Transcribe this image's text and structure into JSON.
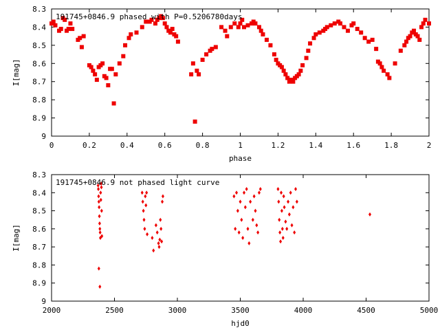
{
  "chart_data": [
    {
      "type": "scatter",
      "title": "191745+0846.9 phased with P=0.5206780days",
      "xlabel": "phase",
      "ylabel": "I[mag]",
      "xlim": [
        0,
        2
      ],
      "ylim": [
        9,
        8.3
      ],
      "x_ticks": [
        0,
        0.2,
        0.4,
        0.6,
        0.8,
        1,
        1.2,
        1.4,
        1.6,
        1.8,
        2
      ],
      "x_tick_labels": [
        "0",
        "0.2",
        "0.4",
        "0.6",
        "0.8",
        "1",
        "1.2",
        "1.4",
        "1.6",
        "1.8",
        "2"
      ],
      "y_ticks": [
        8.3,
        8.4,
        8.5,
        8.6,
        8.7,
        8.8,
        8.9,
        9
      ],
      "y_tick_labels": [
        "8.3",
        "8.4",
        "8.5",
        "8.6",
        "8.7",
        "8.8",
        "8.9",
        "9"
      ],
      "grid": false,
      "marker_color": "#ee0000",
      "series": [
        {
          "x": [
            0.0,
            0.01,
            0.02,
            0.04,
            0.05,
            0.06,
            0.07,
            0.08,
            0.09,
            0.1,
            0.11,
            0.14,
            0.15,
            0.16,
            0.17,
            0.2,
            0.21,
            0.22,
            0.23,
            0.24,
            0.25,
            0.26,
            0.27,
            0.28,
            0.29,
            0.3,
            0.31,
            0.32,
            0.33,
            0.34,
            0.36,
            0.38,
            0.39,
            0.41,
            0.42,
            0.45,
            0.48,
            0.5,
            0.52,
            0.53,
            0.55,
            0.56,
            0.57,
            0.58,
            0.59,
            0.6,
            0.61,
            0.62,
            0.63,
            0.64,
            0.65,
            0.66,
            0.67,
            0.74,
            0.75,
            0.76,
            0.77,
            0.78,
            0.8,
            0.82,
            0.84,
            0.85,
            0.87,
            0.9,
            0.92,
            0.93,
            0.95,
            0.97,
            0.99,
            1.0,
            1.01,
            1.02,
            1.04,
            1.06,
            1.07,
            1.08,
            1.1,
            1.11,
            1.12,
            1.14,
            1.16,
            1.18,
            1.19,
            1.2,
            1.21,
            1.22,
            1.23,
            1.24,
            1.25,
            1.26,
            1.27,
            1.28,
            1.29,
            1.3,
            1.31,
            1.32,
            1.33,
            1.35,
            1.36,
            1.37,
            1.39,
            1.4,
            1.42,
            1.44,
            1.45,
            1.46,
            1.48,
            1.5,
            1.52,
            1.53,
            1.55,
            1.57,
            1.59,
            1.6,
            1.62,
            1.64,
            1.66,
            1.68,
            1.7,
            1.72,
            1.73,
            1.74,
            1.75,
            1.76,
            1.78,
            1.79,
            1.82,
            1.85,
            1.87,
            1.88,
            1.89,
            1.9,
            1.91,
            1.92,
            1.93,
            1.94,
            1.95,
            1.96,
            1.97,
            1.98,
            2.0
          ],
          "y": [
            8.38,
            8.37,
            8.39,
            8.42,
            8.41,
            8.35,
            8.36,
            8.42,
            8.41,
            8.38,
            8.41,
            8.47,
            8.46,
            8.51,
            8.45,
            8.61,
            8.62,
            8.64,
            8.66,
            8.69,
            8.62,
            8.61,
            8.6,
            8.67,
            8.68,
            8.72,
            8.63,
            8.63,
            8.82,
            8.66,
            8.6,
            8.56,
            8.5,
            8.46,
            8.44,
            8.43,
            8.4,
            8.37,
            8.37,
            8.36,
            8.38,
            8.36,
            8.35,
            8.34,
            8.35,
            8.38,
            8.4,
            8.42,
            8.43,
            8.41,
            8.44,
            8.45,
            8.48,
            8.66,
            8.6,
            8.92,
            8.64,
            8.66,
            8.58,
            8.55,
            8.53,
            8.52,
            8.51,
            8.4,
            8.42,
            8.45,
            8.4,
            8.38,
            8.4,
            8.38,
            8.36,
            8.4,
            8.39,
            8.38,
            8.37,
            8.38,
            8.4,
            8.42,
            8.44,
            8.47,
            8.5,
            8.55,
            8.58,
            8.6,
            8.61,
            8.62,
            8.64,
            8.66,
            8.68,
            8.7,
            8.69,
            8.7,
            8.68,
            8.67,
            8.66,
            8.64,
            8.61,
            8.57,
            8.53,
            8.49,
            8.46,
            8.44,
            8.43,
            8.42,
            8.41,
            8.4,
            8.39,
            8.38,
            8.37,
            8.38,
            8.4,
            8.42,
            8.39,
            8.38,
            8.41,
            8.43,
            8.46,
            8.48,
            8.47,
            8.52,
            8.59,
            8.6,
            8.62,
            8.64,
            8.66,
            8.68,
            8.6,
            8.53,
            8.5,
            8.48,
            8.46,
            8.45,
            8.43,
            8.42,
            8.44,
            8.45,
            8.47,
            8.4,
            8.38,
            8.36,
            8.38
          ]
        }
      ]
    },
    {
      "type": "scatter",
      "title": "191745+0846.9 not phased light curve",
      "xlabel": "hjd0",
      "ylabel": "I[mag]",
      "xlim": [
        2000,
        5000
      ],
      "ylim": [
        9,
        8.3
      ],
      "x_ticks": [
        2000,
        2500,
        3000,
        3500,
        4000,
        4500,
        5000
      ],
      "x_tick_labels": [
        "2000",
        "2500",
        "3000",
        "3500",
        "4000",
        "4500",
        "5000"
      ],
      "y_ticks": [
        8.3,
        8.4,
        8.5,
        8.6,
        8.7,
        8.8,
        8.9,
        9
      ],
      "y_tick_labels": [
        "8.3",
        "8.4",
        "8.5",
        "8.6",
        "8.7",
        "8.8",
        "8.9",
        "9"
      ],
      "grid": false,
      "marker_color": "#ee0000",
      "series": [
        {
          "x": [
            2370,
            2372,
            2374,
            2376,
            2378,
            2380,
            2382,
            2384,
            2386,
            2388,
            2390,
            2392,
            2394,
            2396,
            2398,
            2400,
            2376,
            2384,
            2720,
            2725,
            2730,
            2735,
            2740,
            2745,
            2750,
            2755,
            2760,
            2800,
            2810,
            2830,
            2840,
            2850,
            2855,
            2860,
            2865,
            2870,
            2875,
            2880,
            2885,
            3450,
            3460,
            3470,
            3480,
            3490,
            3500,
            3510,
            3520,
            3530,
            3540,
            3550,
            3560,
            3570,
            3580,
            3600,
            3610,
            3620,
            3630,
            3640,
            3650,
            3660,
            3800,
            3805,
            3810,
            3815,
            3820,
            3825,
            3830,
            3835,
            3840,
            3845,
            3850,
            3860,
            3870,
            3880,
            3890,
            3900,
            3910,
            3920,
            3930,
            3940,
            3950,
            4530
          ],
          "y": [
            8.36,
            8.38,
            8.42,
            8.45,
            8.48,
            8.53,
            8.57,
            8.6,
            8.62,
            8.65,
            8.4,
            8.44,
            8.35,
            8.37,
            8.5,
            8.64,
            8.82,
            8.92,
            8.4,
            8.45,
            8.5,
            8.55,
            8.6,
            8.42,
            8.47,
            8.4,
            8.63,
            8.65,
            8.72,
            8.58,
            8.62,
            8.68,
            8.7,
            8.66,
            8.55,
            8.6,
            8.67,
            8.45,
            8.42,
            8.42,
            8.6,
            8.4,
            8.5,
            8.62,
            8.45,
            8.55,
            8.65,
            8.4,
            8.48,
            8.38,
            8.6,
            8.68,
            8.45,
            8.55,
            8.42,
            8.5,
            8.58,
            8.62,
            8.4,
            8.38,
            8.38,
            8.45,
            8.55,
            8.62,
            8.67,
            8.4,
            8.5,
            8.6,
            8.65,
            8.42,
            8.48,
            8.56,
            8.6,
            8.45,
            8.52,
            8.4,
            8.58,
            8.48,
            8.62,
            8.38,
            8.45,
            8.52
          ]
        }
      ]
    }
  ]
}
